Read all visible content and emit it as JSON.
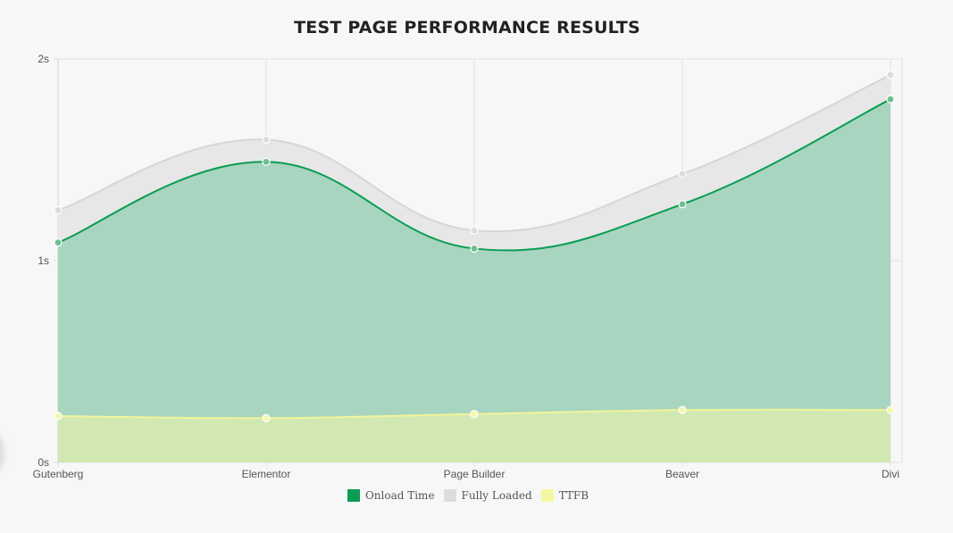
{
  "chart_data": {
    "type": "area",
    "title": "TEST PAGE PERFORMANCE RESULTS",
    "categories": [
      "Gutenberg",
      "Elementor",
      "Page Builder",
      "Beaver",
      "Divi"
    ],
    "y_tick_labels": [
      "0s",
      "1s",
      "2s"
    ],
    "ylim": [
      0,
      2
    ],
    "grid": true,
    "legend_position": "bottom",
    "series": [
      {
        "name": "Onload Time",
        "color": "#0a9d53",
        "fill": "#a8d5bf",
        "values": [
          1.09,
          1.49,
          1.06,
          1.28,
          1.8
        ]
      },
      {
        "name": "Fully Loaded",
        "color": "#d6d6d6",
        "fill": "#e7e7e7",
        "values": [
          1.25,
          1.6,
          1.15,
          1.43,
          1.92
        ]
      },
      {
        "name": "TTFB",
        "color": "#f0f59a",
        "fill": "#d2e8b3",
        "values": [
          0.23,
          0.22,
          0.24,
          0.26,
          0.26
        ]
      }
    ]
  }
}
